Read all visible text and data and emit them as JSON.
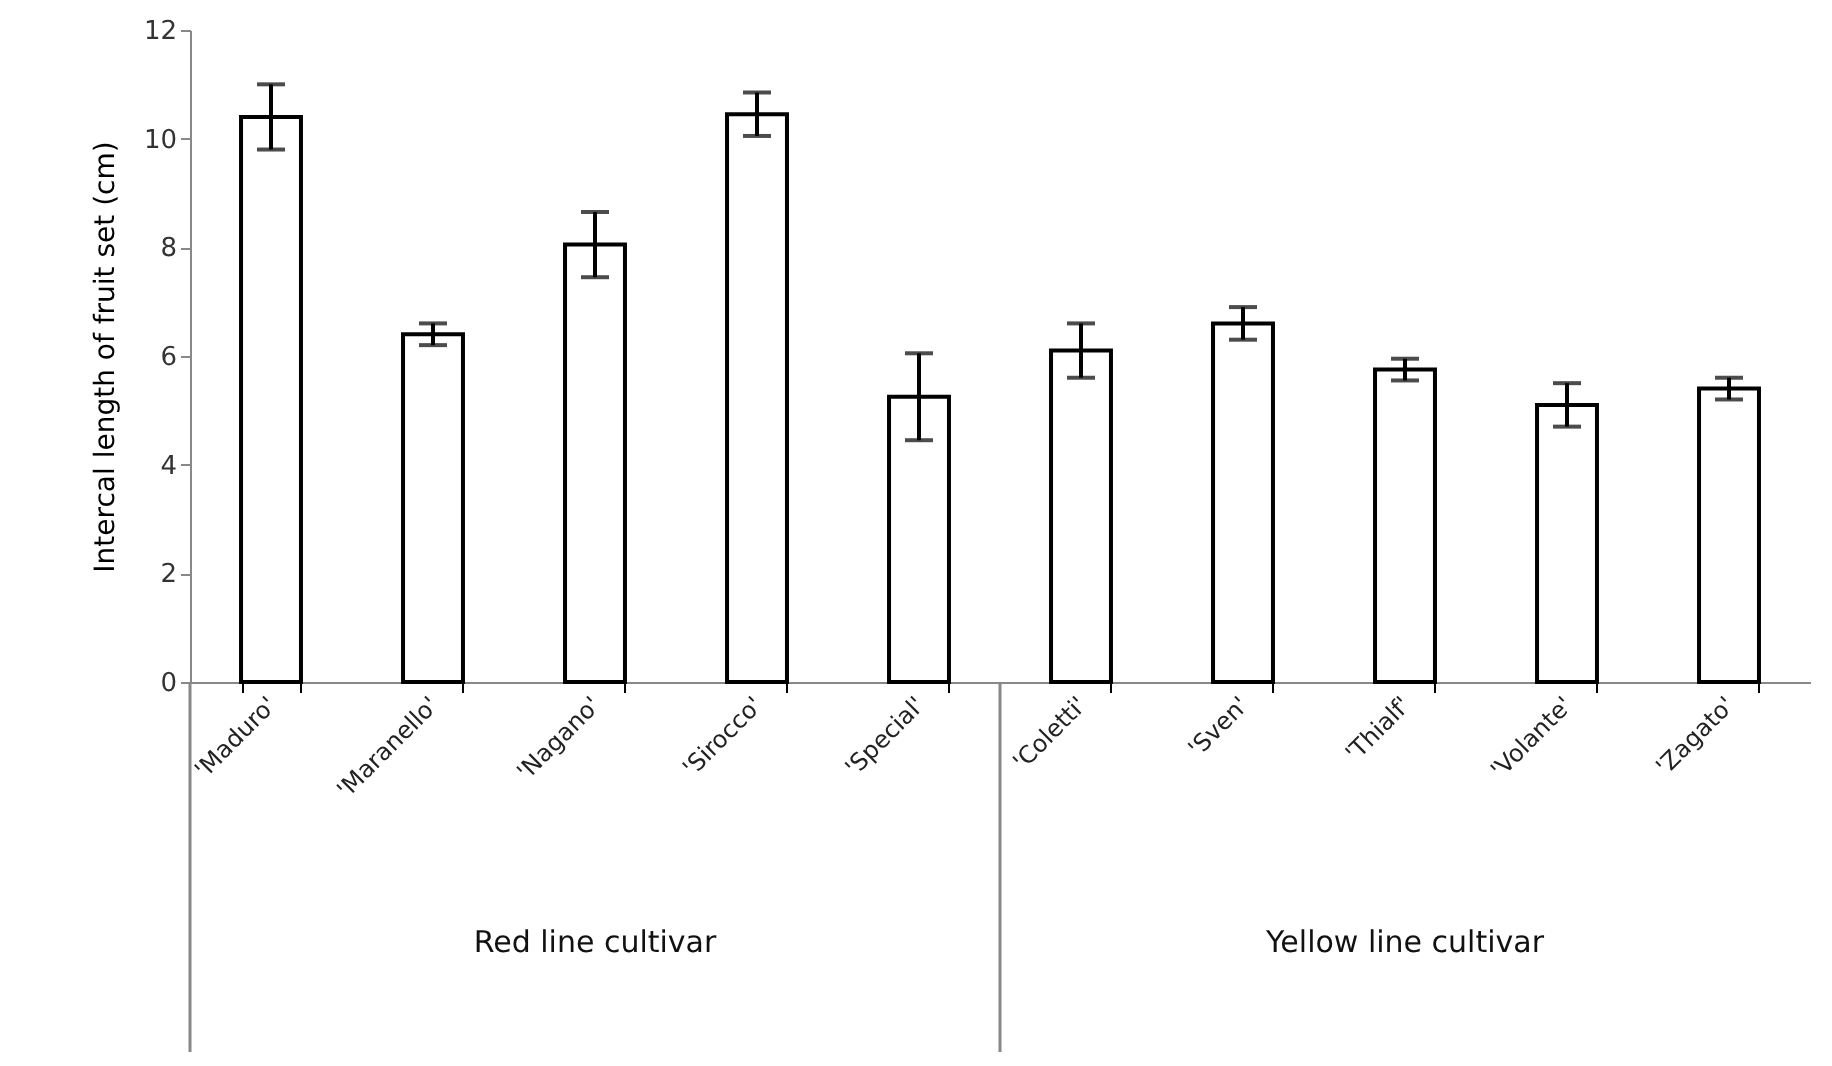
{
  "chart_data": {
    "type": "bar",
    "ylabel": "Intercal length of fruit set (cm)",
    "categories": [
      "'Maduro'",
      "'Maranello'",
      "'Nagano'",
      "'Sirocco'",
      "'Special'",
      "'Coletti'",
      "'Sven'",
      "'Thialf'",
      "'Volante'",
      "'Zagato'"
    ],
    "values": [
      10.4,
      6.4,
      8.05,
      10.45,
      5.25,
      6.1,
      6.6,
      5.75,
      5.1,
      5.4
    ],
    "errors": [
      0.6,
      0.2,
      0.6,
      0.4,
      0.8,
      0.5,
      0.3,
      0.2,
      0.4,
      0.2
    ],
    "color": "#ffffff",
    "ylim": [
      0,
      12
    ],
    "yticks": [
      0,
      2,
      4,
      6,
      8,
      10,
      12
    ],
    "grid": false,
    "annotations": [
      "Red line cultivar",
      "Yellow line cultivar"
    ]
  }
}
